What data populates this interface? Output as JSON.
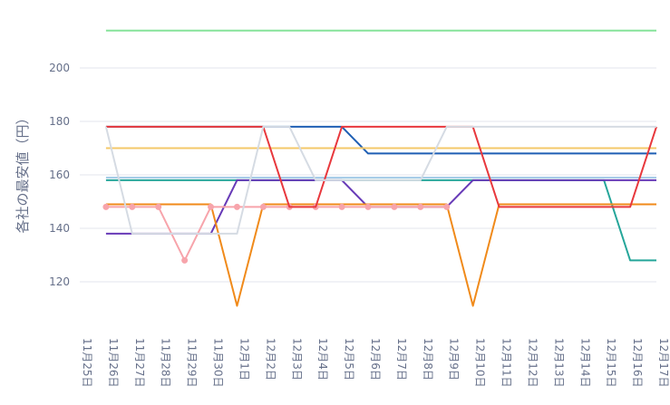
{
  "chart_data": {
    "type": "line",
    "ylabel": "各社の最安値（円）",
    "xlabel": "",
    "ylim": [
      105,
      220
    ],
    "yticks": [
      120,
      140,
      160,
      180,
      200
    ],
    "grid": "horizontal",
    "categories": [
      "11月25日",
      "11月26日",
      "11月27日",
      "11月28日",
      "11月29日",
      "11月30日",
      "12月1日",
      "12月2日",
      "12月3日",
      "12月4日",
      "12月5日",
      "12月6日",
      "12月7日",
      "12月8日",
      "12月9日",
      "12月10日",
      "12月11日",
      "12月12日",
      "12月13日",
      "12月14日",
      "12月15日",
      "12月16日",
      "12月17日"
    ],
    "series": [
      {
        "color": "#86e39a",
        "markers": false,
        "values": [
          null,
          214,
          214,
          214,
          214,
          214,
          214,
          214,
          214,
          214,
          214,
          214,
          214,
          214,
          214,
          214,
          214,
          214,
          214,
          214,
          214,
          214,
          214
        ]
      },
      {
        "color": "#1f5fb4",
        "markers": false,
        "values": [
          null,
          178,
          178,
          178,
          178,
          178,
          178,
          178,
          178,
          178,
          178,
          168,
          168,
          168,
          168,
          168,
          168,
          168,
          168,
          168,
          168,
          168,
          168
        ]
      },
      {
        "color": "#f4c869",
        "markers": false,
        "values": [
          null,
          170,
          170,
          170,
          170,
          170,
          170,
          170,
          170,
          170,
          170,
          170,
          170,
          170,
          170,
          170,
          170,
          170,
          170,
          170,
          170,
          170,
          170
        ]
      },
      {
        "color": "#a8cde8",
        "markers": false,
        "values": [
          null,
          159,
          159,
          159,
          159,
          159,
          159,
          159,
          159,
          159,
          159,
          159,
          159,
          159,
          159,
          159,
          159,
          159,
          159,
          159,
          159,
          159,
          159
        ]
      },
      {
        "color": "#26a69a",
        "markers": false,
        "values": [
          null,
          158,
          158,
          158,
          158,
          158,
          158,
          158,
          158,
          158,
          158,
          158,
          158,
          158,
          158,
          158,
          158,
          158,
          158,
          158,
          158,
          128,
          128
        ]
      },
      {
        "color": "#673ab7",
        "markers": false,
        "values": [
          null,
          138,
          138,
          138,
          138,
          138,
          158,
          158,
          158,
          158,
          158,
          148,
          148,
          148,
          148,
          158,
          158,
          158,
          158,
          158,
          158,
          158,
          158
        ]
      },
      {
        "color": "#f08a1a",
        "markers": false,
        "values": [
          null,
          149,
          149,
          149,
          149,
          149,
          111,
          149,
          149,
          149,
          149,
          149,
          149,
          149,
          149,
          111,
          149,
          149,
          149,
          149,
          149,
          149,
          149
        ]
      },
      {
        "color": "#f7a4ab",
        "markers": true,
        "values": [
          null,
          148,
          148,
          148,
          128,
          148,
          148,
          148,
          148,
          148,
          148,
          148,
          148,
          148,
          148,
          null,
          null,
          null,
          null,
          null,
          null,
          null,
          null
        ]
      },
      {
        "color": "#e8383d",
        "markers": false,
        "values": [
          null,
          178,
          178,
          178,
          178,
          178,
          178,
          178,
          148,
          148,
          178,
          178,
          178,
          178,
          178,
          178,
          148,
          148,
          148,
          148,
          148,
          148,
          178
        ]
      },
      {
        "color": "#d5dbe3",
        "markers": false,
        "values": [
          null,
          178,
          138,
          138,
          138,
          138,
          138,
          178,
          178,
          158,
          158,
          158,
          158,
          158,
          178,
          178,
          178,
          178,
          178,
          178,
          178,
          178,
          178
        ]
      }
    ]
  }
}
